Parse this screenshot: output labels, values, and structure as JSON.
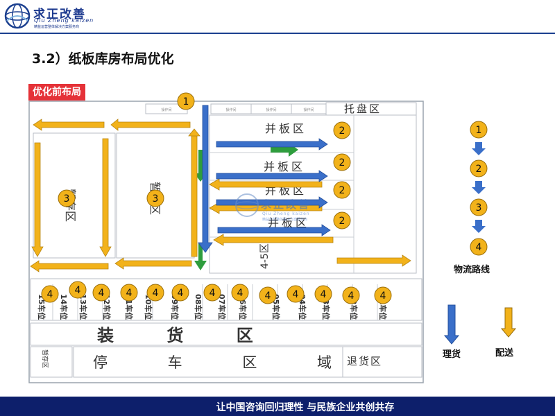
{
  "brand": {
    "name": "求正改善",
    "pinyin": "Qiu Zheng kaizen",
    "slogan": "精益运营整体解决方案服务商",
    "navy": "#1b3f8f"
  },
  "section_title": "3.2）纸板库房布局优化",
  "diagram": {
    "tag": "优化前布局",
    "tag_color": "#e53238",
    "pallet_zone": "托盘区",
    "pair_board_zone": "并板区",
    "vertical_zone_label": "4-5区",
    "loading_zone": "装 货 区",
    "parking_zone": "停 车 区 域",
    "return_zone": "退货区",
    "left_small_zone": "暂存区",
    "small_labels": [
      "操作间",
      "操作间",
      "操作间",
      "操作间"
    ],
    "dock_labels": [
      "15车位",
      "14车位",
      "13车位",
      "12车位",
      "11车位",
      "10车位",
      "09车位",
      "08车位",
      "07车位",
      "06车位",
      "05车位",
      "04车位",
      "03车位",
      "02车位",
      "01车位"
    ],
    "step_numbers": [
      "1",
      "2",
      "3",
      "4"
    ],
    "arrow_colors": {
      "sorting": "#3a6fc9",
      "delivery": "#f2b21a",
      "green": "#2e9d3d"
    }
  },
  "legend": {
    "steps": [
      "1",
      "2",
      "3",
      "4"
    ],
    "flow_caption": "物流路线",
    "sorting_caption": "理货",
    "delivery_caption": "配送"
  },
  "footer": {
    "text": "让中国咨询回归理性  与民族企业共创共存"
  }
}
